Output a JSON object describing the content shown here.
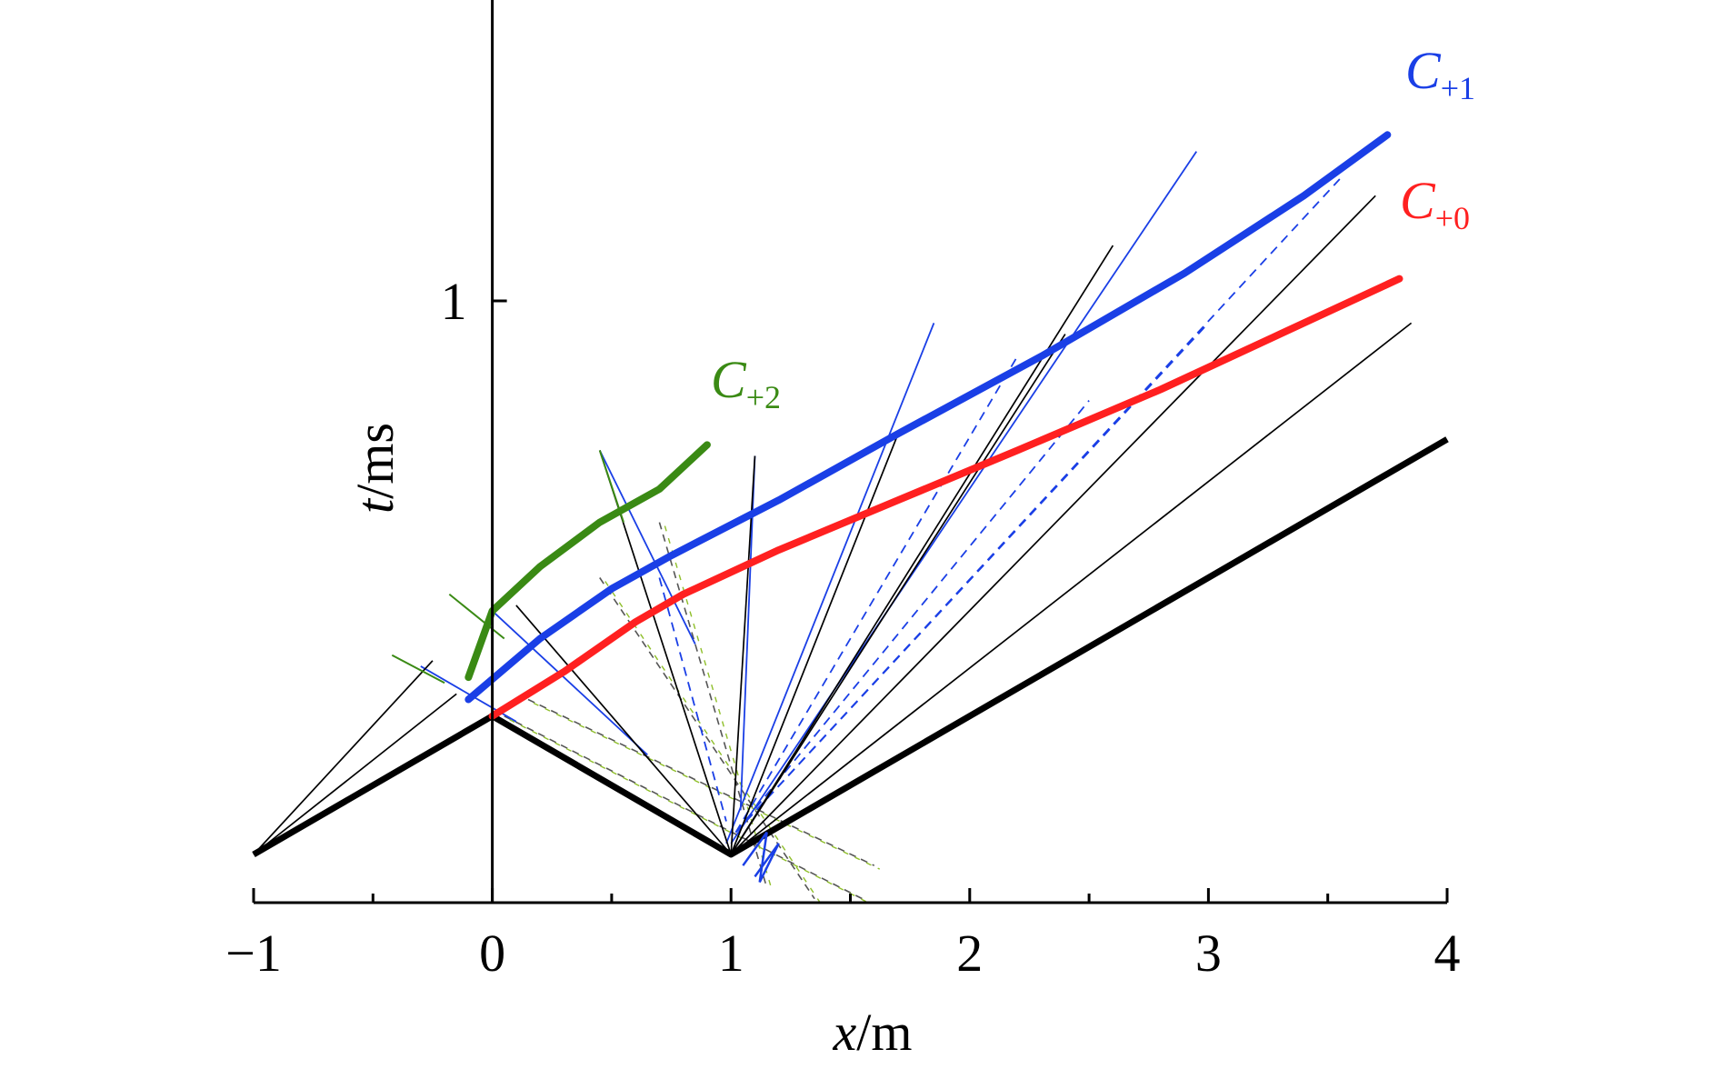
{
  "chart_data": {
    "type": "line",
    "xlabel": {
      "italic": "x",
      "unit": "/m"
    },
    "ylabel": {
      "italic": "t",
      "unit": "/ms"
    },
    "xlim": [
      -1,
      4
    ],
    "ylim": [
      -0.1,
      1.5
    ],
    "x_ticks": [
      "−1",
      "0",
      "1",
      "2",
      "3",
      "4"
    ],
    "x_tick_values": [
      -1,
      0,
      1,
      2,
      3,
      4
    ],
    "y_ticks": [
      "1"
    ],
    "y_tick_values": [
      1
    ],
    "grid": false,
    "legend": "none",
    "colors": {
      "axis": "#000000",
      "boundary": "#000000",
      "C+0": "#ff2020",
      "C+1": "#1a3fe6",
      "C+2": "#3a8a14",
      "thin_blue": "#1a3fe6",
      "dashed_green": "#8fbf2a",
      "dashed_gray": "#555555"
    },
    "boundary": {
      "points": [
        [
          -1,
          0
        ],
        [
          0,
          0.25
        ],
        [
          1,
          0
        ],
        [
          4,
          0.75
        ]
      ]
    },
    "series": [
      {
        "name": "C+0",
        "label_main": "C",
        "label_sub": "+0",
        "color": "#ff2020",
        "points": [
          [
            0,
            0.25
          ],
          [
            0.3,
            0.33
          ],
          [
            0.6,
            0.42
          ],
          [
            0.8,
            0.47
          ],
          [
            1.2,
            0.55
          ],
          [
            1.7,
            0.64
          ],
          [
            2.2,
            0.73
          ],
          [
            2.8,
            0.84
          ],
          [
            3.3,
            0.94
          ],
          [
            3.8,
            1.04
          ]
        ]
      },
      {
        "name": "C+1",
        "label_main": "C",
        "label_sub": "+1",
        "color": "#1a3fe6",
        "points": [
          [
            -0.1,
            0.28
          ],
          [
            0.2,
            0.39
          ],
          [
            0.5,
            0.48
          ],
          [
            0.75,
            0.54
          ],
          [
            1.2,
            0.64
          ],
          [
            1.7,
            0.76
          ],
          [
            2.3,
            0.9
          ],
          [
            2.9,
            1.05
          ],
          [
            3.4,
            1.19
          ],
          [
            3.75,
            1.3
          ]
        ]
      },
      {
        "name": "C+2",
        "label_main": "C",
        "label_sub": "+2",
        "color": "#3a8a14",
        "points": [
          [
            -0.1,
            0.32
          ],
          [
            0,
            0.44
          ],
          [
            0.2,
            0.52
          ],
          [
            0.45,
            0.6
          ],
          [
            0.7,
            0.66
          ],
          [
            0.9,
            0.74
          ]
        ]
      }
    ],
    "rays_black": [
      [
        [
          -1,
          0
        ],
        [
          -0.25,
          0.35
        ]
      ],
      [
        [
          -1,
          0
        ],
        [
          -0.15,
          0.29
        ]
      ],
      [
        [
          1,
          0
        ],
        [
          0.45,
          0.73
        ]
      ],
      [
        [
          1,
          0
        ],
        [
          0.1,
          0.45
        ]
      ],
      [
        [
          1,
          0
        ],
        [
          1.1,
          0.72
        ]
      ],
      [
        [
          1,
          0
        ],
        [
          1.7,
          0.76
        ]
      ],
      [
        [
          1,
          0
        ],
        [
          2.4,
          0.94
        ]
      ],
      [
        [
          1,
          0
        ],
        [
          2.6,
          1.1
        ]
      ],
      [
        [
          1,
          0
        ],
        [
          3.7,
          1.19
        ]
      ],
      [
        [
          1,
          0
        ],
        [
          3.85,
          0.96
        ]
      ]
    ],
    "rays_blue": [
      [
        [
          0.45,
          0.73
        ],
        [
          0.85,
          0.38
        ]
      ],
      [
        [
          0.98,
          0.02
        ],
        [
          1.85,
          0.96
        ]
      ],
      [
        [
          1.0,
          0.02
        ],
        [
          2.95,
          1.27
        ]
      ],
      [
        [
          1.1,
          0.72
        ],
        [
          1.04,
          0.08
        ]
      ],
      [
        [
          0.0,
          0.44
        ],
        [
          0.65,
          0.18
        ]
      ],
      [
        [
          -0.3,
          0.34
        ],
        [
          0.1,
          0.24
        ]
      ]
    ],
    "rays_dashed": [
      [
        [
          0.05,
          0.25
        ],
        [
          1.55,
          -0.08
        ]
      ],
      [
        [
          0.45,
          0.5
        ],
        [
          1.35,
          -0.08
        ]
      ],
      [
        [
          0.7,
          0.6
        ],
        [
          1.15,
          -0.06
        ]
      ],
      [
        [
          0.15,
          0.28
        ],
        [
          1.6,
          -0.02
        ]
      ]
    ],
    "rays_dashed_blue": [
      [
        [
          0.7,
          0.5
        ],
        [
          0.98,
          0.06
        ]
      ],
      [
        [
          1.02,
          0.04
        ],
        [
          2.2,
          0.9
        ]
      ],
      [
        [
          1.02,
          0.04
        ],
        [
          2.5,
          0.82
        ]
      ],
      [
        [
          1.02,
          0.04
        ],
        [
          3.55,
          1.22
        ]
      ],
      [
        [
          1.02,
          0.04
        ],
        [
          3.0,
          0.96
        ]
      ]
    ]
  }
}
